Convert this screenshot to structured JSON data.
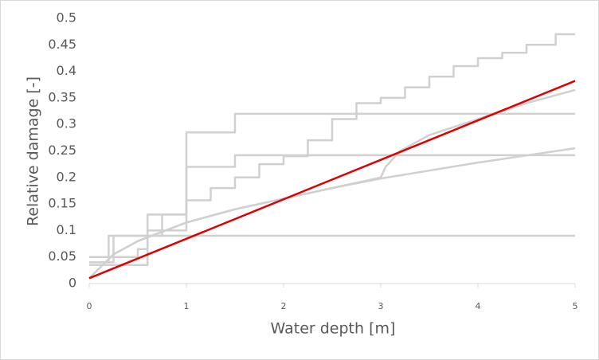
{
  "chart_data": {
    "type": "line",
    "xlabel": "Water depth [m]",
    "ylabel": "Relative damage [-]",
    "xlim": [
      0,
      5
    ],
    "xticks": [
      0,
      1,
      2,
      3,
      4,
      5
    ],
    "ylim": [
      0,
      0.5
    ],
    "yticks": [
      0,
      0.05,
      0.1,
      0.15,
      0.2,
      0.25,
      0.3,
      0.35,
      0.4,
      0.45,
      0.5
    ],
    "grid": false,
    "series": [
      {
        "color": "#d0d0d0",
        "x": [
          0,
          0.2,
          0.2,
          5
        ],
        "values": [
          0.04,
          0.04,
          0.09,
          0.09
        ]
      },
      {
        "color": "#d0d0d0",
        "x": [
          0,
          0.5,
          0.5,
          0.6,
          0.6,
          1,
          1,
          1.5,
          1.5,
          5
        ],
        "values": [
          0.05,
          0.05,
          0.065,
          0.065,
          0.13,
          0.13,
          0.285,
          0.285,
          0.32,
          0.32
        ]
      },
      {
        "color": "#d0d0d0",
        "x": [
          0,
          0.6,
          0.6,
          1,
          1,
          1.5,
          1.5,
          5
        ],
        "values": [
          0.035,
          0.035,
          0.1,
          0.1,
          0.22,
          0.22,
          0.242,
          0.242
        ]
      },
      {
        "color": "#d0d0d0",
        "x": [
          0,
          0.25,
          0.25,
          0.75,
          0.75,
          1,
          1,
          1.25,
          1.25,
          1.5,
          1.5,
          1.75,
          1.75,
          2,
          2,
          2.25,
          2.25,
          2.5,
          2.5,
          2.75,
          2.75,
          3,
          3,
          3.25,
          3.25,
          3.5,
          3.5,
          3.75,
          3.75,
          4,
          4,
          4.25,
          4.25,
          4.5,
          4.5,
          4.8,
          4.8,
          5
        ],
        "values": [
          0.04,
          0.04,
          0.09,
          0.09,
          0.13,
          0.13,
          0.157,
          0.157,
          0.18,
          0.18,
          0.2,
          0.2,
          0.225,
          0.225,
          0.24,
          0.24,
          0.27,
          0.27,
          0.31,
          0.31,
          0.34,
          0.34,
          0.35,
          0.35,
          0.37,
          0.37,
          0.39,
          0.39,
          0.41,
          0.41,
          0.425,
          0.425,
          0.435,
          0.435,
          0.45,
          0.45,
          0.47,
          0.47
        ]
      },
      {
        "color": "#d0d0d0",
        "x": [
          0,
          0.25,
          0.5,
          1,
          1.5,
          2,
          2.5,
          3,
          4,
          5
        ],
        "values": [
          0.01,
          0.055,
          0.08,
          0.115,
          0.14,
          0.16,
          0.18,
          0.198,
          0.228,
          0.255
        ]
      },
      {
        "color": "#d0d0d0",
        "x": [
          0,
          0.25,
          0.5,
          1,
          1.5,
          2,
          2.5,
          3,
          3.05,
          3.2,
          3.5,
          4,
          4.5,
          5
        ],
        "values": [
          0.01,
          0.055,
          0.08,
          0.115,
          0.14,
          0.16,
          0.18,
          0.2,
          0.22,
          0.25,
          0.28,
          0.31,
          0.34,
          0.365
        ]
      },
      {
        "color": "#e00000",
        "x": [
          0,
          5
        ],
        "values": [
          0.01,
          0.382
        ]
      }
    ]
  }
}
